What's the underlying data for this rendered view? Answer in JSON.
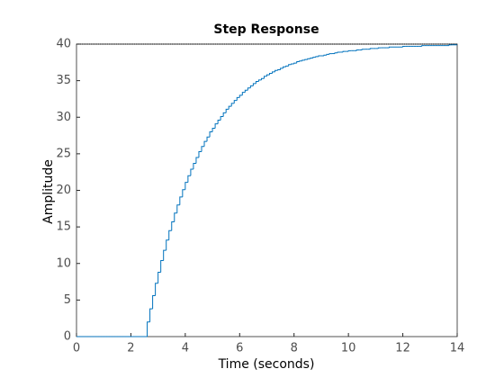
{
  "chart_data": {
    "type": "stairs",
    "title": "Step Response",
    "xlabel": "Time (seconds)",
    "ylabel": "Amplitude",
    "x": [
      0,
      0.1,
      0.2,
      0.3,
      0.4,
      0.5,
      0.6,
      0.7,
      0.8,
      0.9,
      1,
      1.1,
      1.2,
      1.3,
      1.4,
      1.5,
      1.6,
      1.7,
      1.8,
      1.9,
      2,
      2.1,
      2.2,
      2.3,
      2.4,
      2.5,
      2.6,
      2.7,
      2.8,
      2.9,
      3,
      3.1,
      3.2,
      3.3,
      3.4,
      3.5,
      3.6,
      3.7,
      3.8,
      3.9,
      4,
      4.1,
      4.2,
      4.3,
      4.4,
      4.5,
      4.6,
      4.7,
      4.8,
      4.9,
      5,
      5.1,
      5.2,
      5.3,
      5.4,
      5.5,
      5.6,
      5.7,
      5.8,
      5.9,
      6,
      6.1,
      6.2,
      6.3,
      6.4,
      6.5,
      6.6,
      6.7,
      6.8,
      6.9,
      7,
      7.1,
      7.2,
      7.3,
      7.4,
      7.5,
      7.6,
      7.7,
      7.8,
      7.9,
      8,
      8.1,
      8.2,
      8.3,
      8.4,
      8.5,
      8.6,
      8.7,
      8.8,
      8.9,
      9,
      9.1,
      9.2,
      9.3,
      9.4,
      9.5,
      9.6,
      9.7,
      9.8,
      9.9,
      10,
      10.1,
      10.2,
      10.3,
      10.4,
      10.5,
      10.6,
      10.7,
      10.8,
      10.9,
      11,
      11.1,
      11.2,
      11.3,
      11.4,
      11.5,
      11.6,
      11.7,
      11.8,
      11.9,
      12,
      12.1,
      12.2,
      12.3,
      12.4,
      12.5,
      12.6,
      12.7,
      12.8,
      12.9,
      13,
      13.1,
      13.2,
      13.3,
      13.4,
      13.5,
      13.6,
      13.7,
      13.8,
      13.9,
      14
    ],
    "series": [
      {
        "color": "#0072bd",
        "values": [
          0,
          0,
          0,
          0,
          0,
          0,
          0,
          0,
          0,
          0,
          0,
          0,
          0,
          0,
          0,
          0,
          0,
          0,
          0,
          0,
          0,
          0,
          0,
          0,
          0,
          0,
          2.0,
          3.8,
          5.6,
          7.3,
          8.8,
          10.4,
          11.8,
          13.2,
          14.5,
          15.7,
          16.9,
          18.0,
          19.1,
          20.1,
          21.1,
          22.0,
          22.9,
          23.7,
          24.5,
          25.3,
          26.0,
          26.7,
          27.3,
          28.0,
          28.5,
          29.1,
          29.6,
          30.1,
          30.6,
          31.1,
          31.5,
          31.9,
          32.3,
          32.7,
          33.0,
          33.4,
          33.7,
          34.0,
          34.3,
          34.6,
          34.9,
          35.1,
          35.3,
          35.6,
          35.8,
          36.0,
          36.2,
          36.4,
          36.5,
          36.7,
          36.9,
          37.0,
          37.2,
          37.3,
          37.4,
          37.6,
          37.7,
          37.8,
          37.9,
          38.0,
          38.1,
          38.2,
          38.3,
          38.4,
          38.4,
          38.5,
          38.6,
          38.7,
          38.7,
          38.8,
          38.9,
          38.9,
          39.0,
          39.0,
          39.1,
          39.1,
          39.1,
          39.2,
          39.2,
          39.3,
          39.3,
          39.3,
          39.4,
          39.4,
          39.4,
          39.5,
          39.5,
          39.5,
          39.5,
          39.6,
          39.6,
          39.6,
          39.6,
          39.6,
          39.7,
          39.7,
          39.7,
          39.7,
          39.7,
          39.7,
          39.7,
          39.8,
          39.8,
          39.8,
          39.8,
          39.8,
          39.8,
          39.8,
          39.8,
          39.8,
          39.8,
          39.9,
          39.9,
          39.9,
          39.9
        ]
      }
    ],
    "steady_state": 40,
    "xlim": [
      0,
      14
    ],
    "xticks": [
      0,
      2,
      4,
      6,
      8,
      10,
      12,
      14
    ],
    "ylim": [
      0,
      40
    ],
    "yticks": [
      0,
      5,
      10,
      15,
      20,
      25,
      30,
      35,
      40
    ]
  }
}
